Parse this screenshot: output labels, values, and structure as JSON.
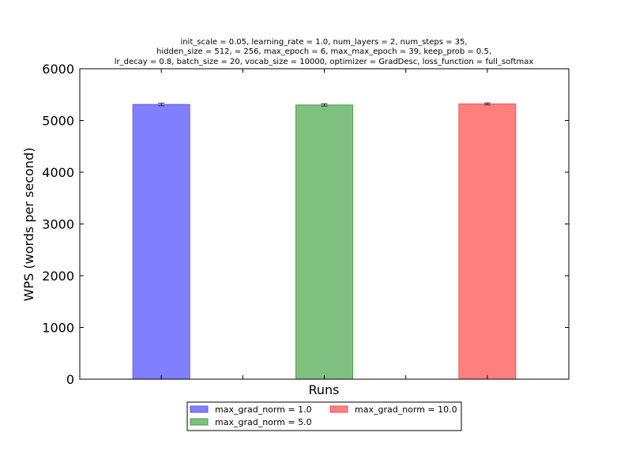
{
  "chart_data": {
    "type": "bar",
    "title_lines": [
      "init_scale = 0.05, learning_rate = 1.0, num_layers = 2, num_steps = 35,",
      "hidden_size = 512,   = 256, max_epoch = 6, max_max_epoch = 39, keep_prob = 0.5,",
      "lr_decay = 0.8, batch_size = 20, vocab_size = 10000, optimizer = GradDesc, loss_function = full_softmax"
    ],
    "xlabel": "Runs",
    "ylabel": "WPS (words per second)",
    "ylim": [
      0,
      6000
    ],
    "yticks": [
      0,
      1000,
      2000,
      3000,
      4000,
      5000,
      6000
    ],
    "grid": false,
    "legend_position": "bottom-center",
    "series": [
      {
        "name": "max_grad_norm = 1.0",
        "value": 5310,
        "error": 25,
        "color": "#7f7fff",
        "edge": "#5e5eea"
      },
      {
        "name": "max_grad_norm = 5.0",
        "value": 5300,
        "error": 22,
        "color": "#7fbf7f",
        "edge": "#4f9e4f"
      },
      {
        "name": "max_grad_norm = 10.0",
        "value": 5320,
        "error": 20,
        "color": "#ff7f7f",
        "edge": "#e85b5b"
      }
    ]
  }
}
